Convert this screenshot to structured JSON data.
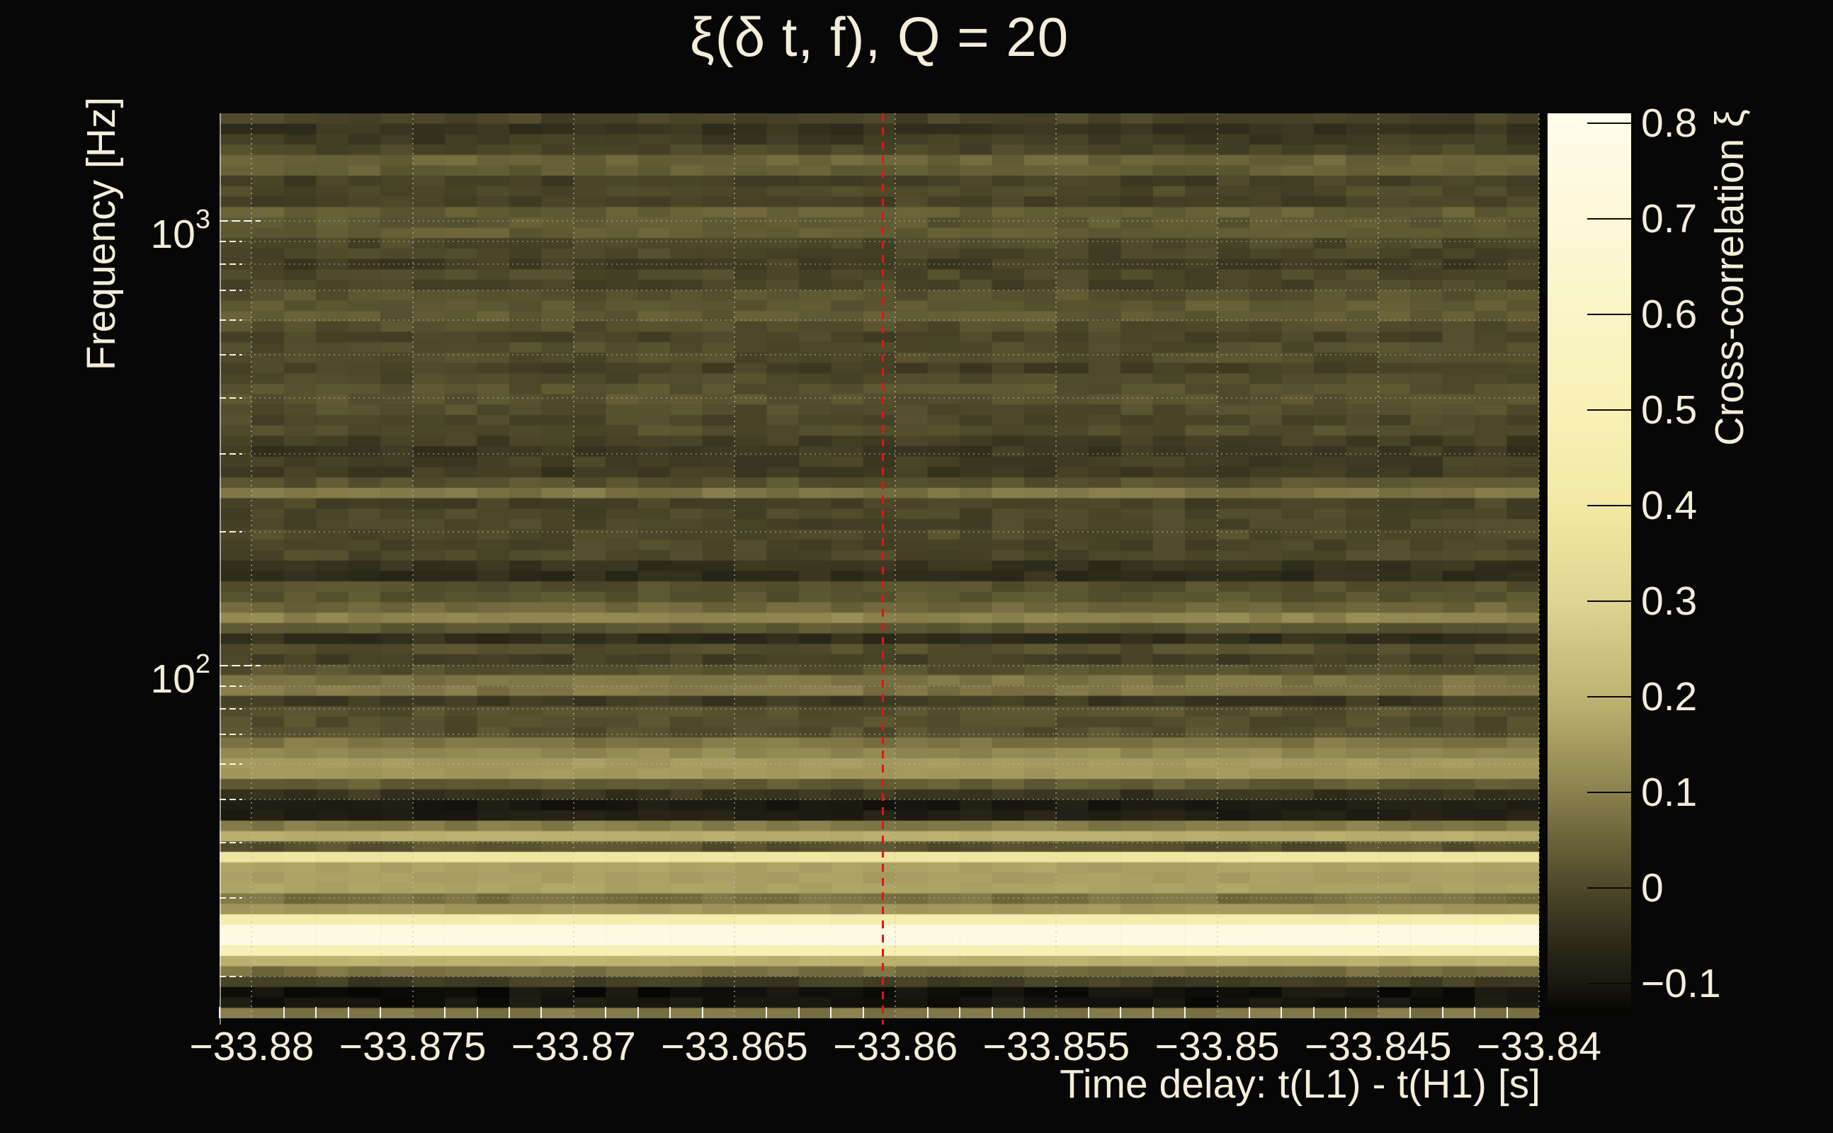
{
  "figure": {
    "background": "#070707",
    "text_color": "#f3edda"
  },
  "chart_data": {
    "type": "heatmap",
    "title": "ξ(δ t, f), Q = 20",
    "xlabel": "Time delay: t(L1) - t(H1) [s]",
    "ylabel": "Frequency [Hz]",
    "x_axis": {
      "range": [
        -33.881,
        -33.84
      ],
      "minor_step": 0.001,
      "ticks": [
        {
          "v": -33.88,
          "label": "−33.88"
        },
        {
          "v": -33.875,
          "label": "−33.875"
        },
        {
          "v": -33.87,
          "label": "−33.87"
        },
        {
          "v": -33.865,
          "label": "−33.865"
        },
        {
          "v": -33.86,
          "label": "−33.86"
        },
        {
          "v": -33.855,
          "label": "−33.855"
        },
        {
          "v": -33.85,
          "label": "−33.85"
        },
        {
          "v": -33.845,
          "label": "−33.845"
        },
        {
          "v": -33.84,
          "label": "−33.84"
        }
      ]
    },
    "y_axis": {
      "scale": "log",
      "range": [
        16.1,
        1749
      ],
      "major_ticks": [
        {
          "f": 1000,
          "mantissa": "10",
          "exponent": "3"
        },
        {
          "f": 100,
          "mantissa": "10",
          "exponent": "2"
        }
      ],
      "minor_ticks": [
        900,
        800,
        700,
        600,
        500,
        400,
        300,
        200,
        90,
        80,
        70,
        60,
        50,
        40,
        30,
        20
      ]
    },
    "colorbar": {
      "label": "Cross-correlation ξ",
      "min": -0.13,
      "max": 0.81,
      "ticks": [
        {
          "v": 0.8,
          "label": "0.8"
        },
        {
          "v": 0.7,
          "label": "0.7"
        },
        {
          "v": 0.6,
          "label": "0.6"
        },
        {
          "v": 0.5,
          "label": "0.5"
        },
        {
          "v": 0.4,
          "label": "0.4"
        },
        {
          "v": 0.3,
          "label": "0.3"
        },
        {
          "v": 0.2,
          "label": "0.2"
        },
        {
          "v": 0.1,
          "label": "0.1"
        },
        {
          "v": 0.0,
          "label": "0"
        },
        {
          "v": -0.1,
          "label": "−0.1"
        }
      ]
    },
    "colormap": [
      [
        -0.13,
        "#050503"
      ],
      [
        -0.1,
        "#1a1810"
      ],
      [
        -0.05,
        "#302d1c"
      ],
      [
        0.0,
        "#4d4829"
      ],
      [
        0.05,
        "#6a6339"
      ],
      [
        0.1,
        "#8a814e"
      ],
      [
        0.15,
        "#a59b5f"
      ],
      [
        0.2,
        "#beb472"
      ],
      [
        0.3,
        "#ded592"
      ],
      [
        0.4,
        "#f2e9a4"
      ],
      [
        0.5,
        "#f7f1b6"
      ],
      [
        0.6,
        "#faf4c6"
      ],
      [
        0.7,
        "#fdf8d8"
      ],
      [
        0.8,
        "#fffce9"
      ],
      [
        0.81,
        "#fffdf0"
      ]
    ],
    "marker": {
      "type": "vline",
      "x": -33.8604,
      "color": "#e51414",
      "style": "dashed"
    },
    "heatmap": {
      "time_bins": 41,
      "freq_rows": 87,
      "bands": [
        {
          "f_hi": 1749,
          "f_lo": 1654,
          "xi": 0.0
        },
        {
          "f_hi": 1654,
          "f_lo": 1481,
          "xi": -0.03
        },
        {
          "f_hi": 1481,
          "f_lo": 1426,
          "xi": 0.01
        },
        {
          "f_hi": 1426,
          "f_lo": 1259,
          "xi": 0.04
        },
        {
          "f_hi": 1259,
          "f_lo": 1086,
          "xi": 0.0
        },
        {
          "f_hi": 1086,
          "f_lo": 938,
          "xi": 0.03
        },
        {
          "f_hi": 938,
          "f_lo": 822,
          "xi": 0.01
        },
        {
          "f_hi": 822,
          "f_lo": 698,
          "xi": -0.01
        },
        {
          "f_hi": 698,
          "f_lo": 552,
          "xi": 0.02
        },
        {
          "f_hi": 552,
          "f_lo": 428,
          "xi": 0.0
        },
        {
          "f_hi": 428,
          "f_lo": 363,
          "xi": 0.01
        },
        {
          "f_hi": 363,
          "f_lo": 340,
          "xi": 0.01
        },
        {
          "f_hi": 340,
          "f_lo": 325,
          "xi": 0.02
        },
        {
          "f_hi": 325,
          "f_lo": 303,
          "xi": -0.03
        },
        {
          "f_hi": 303,
          "f_lo": 280,
          "xi": -0.01
        },
        {
          "f_hi": 280,
          "f_lo": 269,
          "xi": -0.04
        },
        {
          "f_hi": 269,
          "f_lo": 254,
          "xi": 0.01
        },
        {
          "f_hi": 254,
          "f_lo": 241,
          "xi": 0.07
        },
        {
          "f_hi": 241,
          "f_lo": 220,
          "xi": 0.0
        },
        {
          "f_hi": 220,
          "f_lo": 206,
          "xi": -0.02
        },
        {
          "f_hi": 206,
          "f_lo": 186,
          "xi": 0.01
        },
        {
          "f_hi": 186,
          "f_lo": 170,
          "xi": 0.0
        },
        {
          "f_hi": 170,
          "f_lo": 158,
          "xi": -0.04
        },
        {
          "f_hi": 158,
          "f_lo": 154,
          "xi": -0.05
        },
        {
          "f_hi": 154,
          "f_lo": 146,
          "xi": 0.0
        },
        {
          "f_hi": 146,
          "f_lo": 139,
          "xi": 0.02
        },
        {
          "f_hi": 139,
          "f_lo": 132,
          "xi": 0.06
        },
        {
          "f_hi": 132,
          "f_lo": 126,
          "xi": 0.1
        },
        {
          "f_hi": 126,
          "f_lo": 120,
          "xi": 0.03
        },
        {
          "f_hi": 120,
          "f_lo": 115,
          "xi": -0.04
        },
        {
          "f_hi": 115,
          "f_lo": 108,
          "xi": 0.01
        },
        {
          "f_hi": 108,
          "f_lo": 102,
          "xi": -0.02
        },
        {
          "f_hi": 102,
          "f_lo": 92.8,
          "xi": 0.02
        },
        {
          "f_hi": 92.8,
          "f_lo": 89.4,
          "xi": 0.07
        },
        {
          "f_hi": 89.4,
          "f_lo": 84.6,
          "xi": 0.09
        },
        {
          "f_hi": 84.6,
          "f_lo": 79.5,
          "xi": -0.04
        },
        {
          "f_hi": 79.5,
          "f_lo": 70.6,
          "xi": 0.0
        },
        {
          "f_hi": 70.6,
          "f_lo": 67.8,
          "xi": -0.065
        },
        {
          "f_hi": 67.8,
          "f_lo": 64.1,
          "xi": 0.07
        },
        {
          "f_hi": 64.1,
          "f_lo": 60.6,
          "xi": 0.105
        },
        {
          "f_hi": 60.6,
          "f_lo": 55.2,
          "xi": 0.145
        },
        {
          "f_hi": 55.2,
          "f_lo": 51.8,
          "xi": 0.035
        },
        {
          "f_hi": 51.8,
          "f_lo": 50.3,
          "xi": -0.05
        },
        {
          "f_hi": 50.3,
          "f_lo": 44.7,
          "xi": -0.095
        },
        {
          "f_hi": 44.7,
          "f_lo": 42.0,
          "xi": 0.075
        },
        {
          "f_hi": 42.0,
          "f_lo": 40.0,
          "xi": 0.19
        },
        {
          "f_hi": 40.0,
          "f_lo": 38.1,
          "xi": 0.03
        },
        {
          "f_hi": 38.1,
          "f_lo": 36.0,
          "xi": 0.38
        },
        {
          "f_hi": 36.0,
          "f_lo": 31.2,
          "xi": 0.16
        },
        {
          "f_hi": 31.2,
          "f_lo": 29.0,
          "xi": 0.08
        },
        {
          "f_hi": 29.0,
          "f_lo": 27.4,
          "xi": 0.15
        },
        {
          "f_hi": 27.4,
          "f_lo": 26.3,
          "xi": 0.45
        },
        {
          "f_hi": 26.3,
          "f_lo": 23.4,
          "xi": 0.76
        },
        {
          "f_hi": 23.4,
          "f_lo": 22.3,
          "xi": 0.5
        },
        {
          "f_hi": 22.3,
          "f_lo": 21.3,
          "xi": 0.19
        },
        {
          "f_hi": 21.3,
          "f_lo": 20.1,
          "xi": 0.075
        },
        {
          "f_hi": 20.1,
          "f_lo": 19.2,
          "xi": -0.02
        },
        {
          "f_hi": 19.2,
          "f_lo": 18.8,
          "xi": -0.05
        },
        {
          "f_hi": 18.8,
          "f_lo": 17.4,
          "xi": -0.12
        },
        {
          "f_hi": 17.4,
          "f_lo": 16.1,
          "xi": 0.095
        }
      ]
    }
  }
}
